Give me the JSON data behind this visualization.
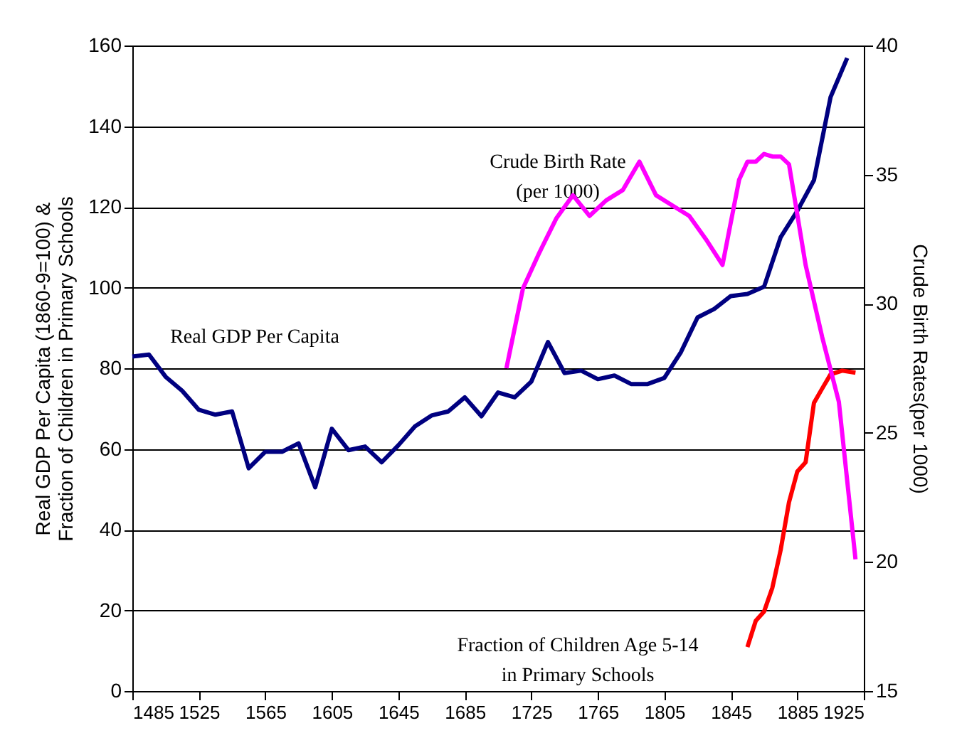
{
  "chart_data": {
    "type": "line",
    "ylabel": "Real GDP Per Capita  (1860-9=100) &\nFraction of Children in Primary Schools",
    "y2label": "Crude Birth Rates(per 1000)",
    "xlim": [
      1485,
      1925
    ],
    "xticks": [
      1485,
      1525,
      1565,
      1605,
      1645,
      1685,
      1725,
      1765,
      1805,
      1845,
      1885,
      1925
    ],
    "ylim": [
      0,
      160
    ],
    "yticks": [
      0,
      20,
      40,
      60,
      80,
      100,
      120,
      140,
      160
    ],
    "y2lim": [
      15,
      40
    ],
    "y2ticks": [
      15,
      20,
      25,
      30,
      35,
      40
    ],
    "grid": "y",
    "series": [
      {
        "color": "#000080",
        "x": [
          1485,
          1495,
          1505,
          1515,
          1525,
          1535,
          1545,
          1555,
          1565,
          1575,
          1585,
          1595,
          1605,
          1615,
          1625,
          1635,
          1645,
          1655,
          1665,
          1675,
          1685,
          1695,
          1705,
          1715,
          1725,
          1735,
          1745,
          1755,
          1765,
          1775,
          1785,
          1795,
          1805,
          1815,
          1825,
          1835,
          1845,
          1855,
          1865,
          1875,
          1885,
          1895,
          1905,
          1915
        ],
        "values": [
          82.9,
          83.4,
          77.9,
          74.4,
          69.7,
          68.5,
          69.3,
          55.2,
          59.3,
          59.3,
          61.4,
          50.5,
          65,
          59.7,
          60.6,
          56.7,
          60.9,
          65.6,
          68.3,
          69.3,
          72.8,
          68.1,
          74,
          72.8,
          76.7,
          86.5,
          78.8,
          79.4,
          77.3,
          78.2,
          76.1,
          76.1,
          77.6,
          84,
          92.6,
          94.7,
          97.9,
          98.4,
          100.2,
          112.5,
          119,
          126.6,
          147.2,
          156.9
        ]
      },
      {
        "color": "#ff00ff",
        "axis": "y2",
        "x": [
          1710,
          1720,
          1730,
          1740,
          1750,
          1760,
          1770,
          1780,
          1790,
          1800,
          1810,
          1820,
          1830,
          1840,
          1850,
          1855,
          1860,
          1865,
          1870,
          1875,
          1880,
          1890,
          1900,
          1910,
          1920
        ],
        "values": [
          27.5,
          30.6,
          32,
          33.3,
          34.2,
          33.4,
          34,
          34.4,
          35.5,
          34.2,
          33.8,
          33.4,
          32.5,
          31.5,
          34.8,
          35.5,
          35.5,
          35.8,
          35.7,
          35.7,
          35.4,
          31.5,
          28.7,
          26.2,
          20.1
        ]
      },
      {
        "color": "#ff0000",
        "x": [
          1855,
          1860,
          1865,
          1870,
          1875,
          1880,
          1885,
          1890,
          1895,
          1900,
          1905,
          1912,
          1920
        ],
        "values": [
          10.9,
          17.4,
          19.7,
          25.6,
          35,
          46.8,
          54.4,
          56.7,
          71.4,
          75,
          78.5,
          79.4,
          78.9
        ]
      }
    ],
    "annotations": [
      "Real GDP Per Capita",
      "Crude Birth Rate\n(per 1000)",
      "Fraction of Children Age 5-14\nin Primary Schools"
    ]
  }
}
